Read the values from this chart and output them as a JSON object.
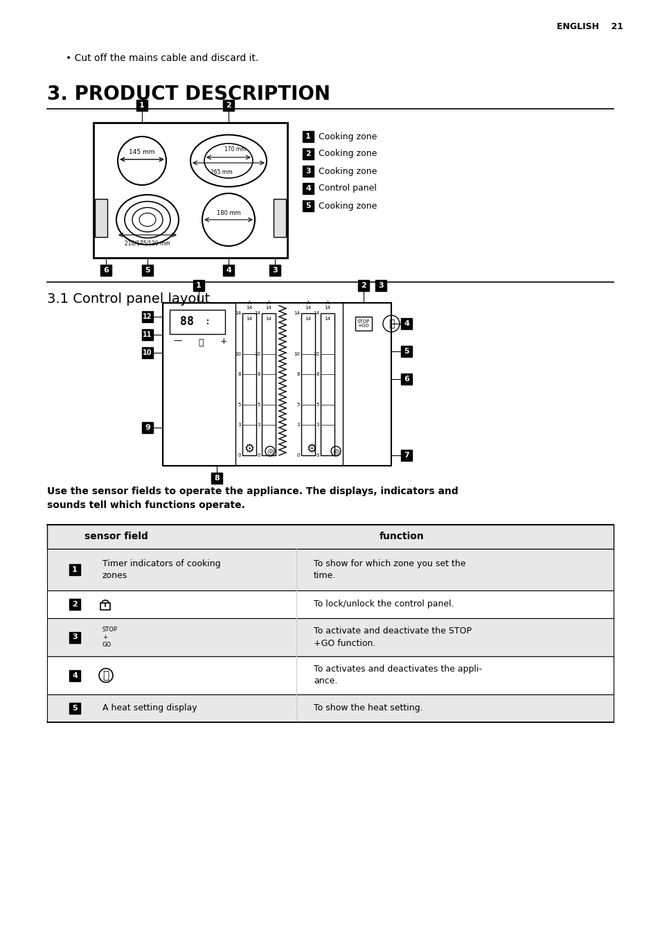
{
  "page_header_right": "ENGLISH    21",
  "bullet_text": "Cut off the mains cable and discard it.",
  "section_title": "3. PRODUCT DESCRIPTION",
  "subsection_title": "3.1 Control panel layout",
  "legend_items": [
    {
      "num": "1",
      "text": "Cooking zone"
    },
    {
      "num": "2",
      "text": "Cooking zone"
    },
    {
      "num": "3",
      "text": "Cooking zone"
    },
    {
      "num": "4",
      "text": "Control panel"
    },
    {
      "num": "5",
      "text": "Cooking zone"
    }
  ],
  "hob_labels": {
    "zone1_mm": "145 mm",
    "zone2_outer_mm": "265 mm",
    "zone2_inner_mm": "170 mm",
    "zone3_mm": "210/175/120 mm",
    "zone4_mm": "180 mm"
  },
  "table_header": [
    "sensor field",
    "function"
  ],
  "table_rows": [
    {
      "num": "1",
      "sensor": "Timer indicators of cooking\nzones",
      "function": "To show for which zone you set the\ntime."
    },
    {
      "num": "2",
      "sensor": "☐",
      "function": "To lock/unlock the control panel."
    },
    {
      "num": "3",
      "sensor": "STOP\n+\nGO",
      "function": "To activate and deactivate the STOP\n+GO function."
    },
    {
      "num": "4",
      "sensor": "Ⓢ",
      "function": "To activates and deactivates the appli-\nance."
    },
    {
      "num": "5",
      "sensor": "A heat setting display",
      "function": "To show the heat setting."
    }
  ],
  "bold_text": "Use the sensor fields to operate the appliance. The displays, indicators and\nsounds tell which functions operate.",
  "bg_color": "#ffffff",
  "black": "#000000",
  "light_gray": "#e8e8e8",
  "medium_gray": "#cccccc"
}
